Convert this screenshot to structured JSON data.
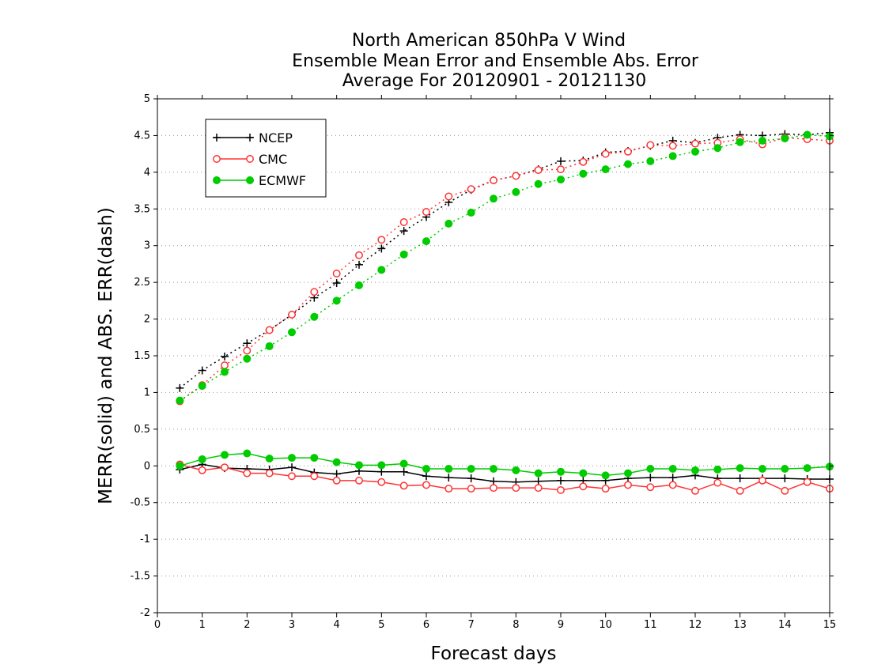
{
  "chart_data": {
    "type": "line",
    "title": [
      "North American 850hPa V Wind",
      "Ensemble Mean Error and Ensemble Abs. Error",
      "Average For 20120901 - 20121130"
    ],
    "xlabel": "Forecast days",
    "ylabel": "MERR(solid) and ABS. ERR(dash)",
    "xlim": [
      0,
      15
    ],
    "ylim": [
      -2,
      5
    ],
    "xticks": [
      0,
      1,
      2,
      3,
      4,
      5,
      6,
      7,
      8,
      9,
      10,
      11,
      12,
      13,
      14,
      15
    ],
    "xtick_labels": [
      "0",
      "1",
      "2",
      "3",
      "4",
      "5",
      "6",
      "7",
      "8",
      "9",
      "10",
      "11",
      "12",
      "13",
      "14",
      "15"
    ],
    "yticks": [
      -2,
      -1.5,
      -1,
      -0.5,
      0,
      0.5,
      1,
      1.5,
      2,
      2.5,
      3,
      3.5,
      4,
      4.5,
      5
    ],
    "ytick_labels": [
      "-2",
      "-1.5",
      "-1",
      "-0.5",
      "0",
      "0.5",
      "1",
      "1.5",
      "2",
      "2.5",
      "3",
      "3.5",
      "4",
      "4.5",
      "5"
    ],
    "grid": "horizontal dotted",
    "legend_position": "top-left",
    "x": [
      0.5,
      1,
      1.5,
      2,
      2.5,
      3,
      3.5,
      4,
      4.5,
      5,
      5.5,
      6,
      6.5,
      7,
      7.5,
      8,
      8.5,
      9,
      9.5,
      10,
      10.5,
      11,
      11.5,
      12,
      12.5,
      13,
      13.5,
      14,
      14.5,
      15
    ],
    "series": [
      {
        "name": "NCEP",
        "color": "#000000",
        "marker": "plus",
        "abs_error": [
          1.06,
          1.3,
          1.49,
          1.67,
          1.85,
          2.06,
          2.29,
          2.49,
          2.74,
          2.96,
          3.2,
          3.39,
          3.59,
          3.76,
          3.89,
          3.95,
          4.04,
          4.15,
          4.16,
          4.27,
          4.29,
          4.36,
          4.43,
          4.4,
          4.47,
          4.51,
          4.5,
          4.52,
          4.51,
          4.54
        ],
        "mean_error": [
          -0.05,
          0.02,
          -0.03,
          -0.04,
          -0.05,
          -0.02,
          -0.09,
          -0.11,
          -0.07,
          -0.08,
          -0.08,
          -0.14,
          -0.16,
          -0.17,
          -0.21,
          -0.22,
          -0.21,
          -0.2,
          -0.2,
          -0.2,
          -0.17,
          -0.16,
          -0.16,
          -0.13,
          -0.17,
          -0.17,
          -0.17,
          -0.17,
          -0.18,
          -0.18
        ]
      },
      {
        "name": "CMC",
        "color": "#ff3333",
        "marker": "open-circle",
        "abs_error": [
          0.88,
          1.1,
          1.37,
          1.57,
          1.85,
          2.06,
          2.37,
          2.62,
          2.87,
          3.08,
          3.32,
          3.46,
          3.67,
          3.77,
          3.89,
          3.95,
          4.03,
          4.04,
          4.14,
          4.25,
          4.28,
          4.37,
          4.36,
          4.39,
          4.4,
          4.45,
          4.38,
          4.47,
          4.45,
          4.43
        ],
        "mean_error": [
          0.02,
          -0.06,
          -0.02,
          -0.1,
          -0.1,
          -0.14,
          -0.14,
          -0.2,
          -0.2,
          -0.22,
          -0.27,
          -0.26,
          -0.31,
          -0.31,
          -0.3,
          -0.3,
          -0.3,
          -0.33,
          -0.28,
          -0.31,
          -0.26,
          -0.29,
          -0.26,
          -0.34,
          -0.23,
          -0.34,
          -0.2,
          -0.34,
          -0.22,
          -0.31
        ]
      },
      {
        "name": "ECMWF",
        "color": "#00cc00",
        "marker": "filled-circle",
        "abs_error": [
          0.89,
          1.09,
          1.28,
          1.46,
          1.63,
          1.82,
          2.03,
          2.25,
          2.46,
          2.67,
          2.88,
          3.06,
          3.3,
          3.45,
          3.64,
          3.73,
          3.84,
          3.9,
          3.98,
          4.04,
          4.11,
          4.15,
          4.22,
          4.28,
          4.33,
          4.41,
          4.43,
          4.46,
          4.51,
          4.49
        ],
        "mean_error": [
          0.0,
          0.09,
          0.15,
          0.17,
          0.1,
          0.11,
          0.11,
          0.05,
          0.01,
          0.01,
          0.03,
          -0.04,
          -0.04,
          -0.04,
          -0.04,
          -0.06,
          -0.1,
          -0.08,
          -0.1,
          -0.13,
          -0.1,
          -0.04,
          -0.04,
          -0.06,
          -0.05,
          -0.03,
          -0.04,
          -0.04,
          -0.03,
          -0.01
        ]
      }
    ]
  }
}
